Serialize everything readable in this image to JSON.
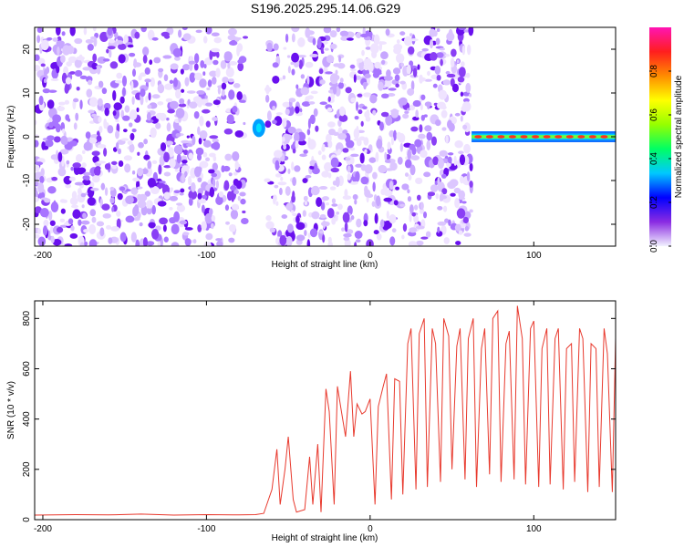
{
  "title": "S196.2025.295.14.06.G29",
  "chart_data": [
    {
      "type": "heatmap",
      "xlabel": "Height of straight line (km)",
      "ylabel": "Frequency (Hz)",
      "xlim": [
        -205,
        150
      ],
      "ylim": [
        -25,
        25
      ],
      "xticks": [
        -200,
        -100,
        0,
        100
      ],
      "yticks": [
        -20,
        -10,
        0,
        10,
        20
      ],
      "colorbar": {
        "label": "Normalized spectral amplitude",
        "range": [
          0,
          1
        ],
        "ticks": [
          "0.0",
          "0.2",
          "0.4",
          "0.6",
          "0.8"
        ],
        "colors": [
          "#f2f2ff",
          "#8a2be2",
          "#0000ff",
          "#00c8ff",
          "#00ff64",
          "#96ff00",
          "#ffff00",
          "#ff8c00",
          "#ff1e1e",
          "#ff14b4"
        ]
      },
      "regions": [
        {
          "name": "noise",
          "x": [
            -205,
            62
          ],
          "y": [
            -25,
            25
          ],
          "amplitude": 0.1
        },
        {
          "name": "gap",
          "x": [
            -76,
            -63
          ],
          "y": [
            -25,
            25
          ],
          "amplitude": 0.0
        },
        {
          "name": "signal-line",
          "x": [
            62,
            150
          ],
          "freq_hz": 0,
          "amplitude": 0.9
        }
      ],
      "hotspots": [
        {
          "x": -68,
          "y": 2,
          "amplitude": 0.3
        }
      ]
    },
    {
      "type": "line",
      "xlabel": "Height of straight line (km)",
      "ylabel": "SNR (10 * v/v)",
      "xlim": [
        -205,
        150
      ],
      "ylim": [
        0,
        870
      ],
      "xticks": [
        -200,
        -100,
        0,
        100
      ],
      "yticks": [
        0,
        200,
        400,
        600,
        800
      ],
      "color": "#e8392d",
      "series": [
        {
          "name": "SNR",
          "x": [
            -205,
            -180,
            -160,
            -140,
            -120,
            -100,
            -80,
            -70,
            -65,
            -60,
            -57,
            -55,
            -52,
            -50,
            -47,
            -45,
            -40,
            -37,
            -35,
            -32,
            -30,
            -27,
            -25,
            -22,
            -20,
            -18,
            -15,
            -12,
            -10,
            -8,
            -5,
            -3,
            0,
            3,
            5,
            8,
            10,
            13,
            15,
            18,
            20,
            23,
            25,
            28,
            30,
            33,
            35,
            38,
            40,
            43,
            45,
            48,
            50,
            53,
            55,
            58,
            60,
            63,
            65,
            68,
            70,
            73,
            75,
            78,
            80,
            83,
            85,
            88,
            90,
            93,
            95,
            98,
            100,
            103,
            105,
            108,
            110,
            113,
            115,
            118,
            120,
            123,
            125,
            128,
            130,
            133,
            135,
            138,
            140,
            143,
            145,
            148,
            150
          ],
          "y": [
            18,
            20,
            19,
            22,
            18,
            20,
            19,
            20,
            25,
            120,
            280,
            60,
            200,
            330,
            80,
            30,
            40,
            250,
            60,
            300,
            30,
            520,
            430,
            60,
            530,
            450,
            330,
            590,
            330,
            460,
            420,
            430,
            480,
            60,
            450,
            530,
            580,
            80,
            560,
            550,
            100,
            700,
            760,
            120,
            740,
            800,
            130,
            760,
            700,
            150,
            800,
            730,
            200,
            690,
            760,
            160,
            720,
            800,
            130,
            680,
            760,
            180,
            800,
            830,
            150,
            700,
            750,
            160,
            850,
            720,
            140,
            760,
            790,
            130,
            680,
            760,
            140,
            720,
            760,
            120,
            680,
            700,
            150,
            760,
            720,
            110,
            700,
            680,
            130,
            760,
            660,
            110,
            720
          ]
        }
      ]
    }
  ]
}
